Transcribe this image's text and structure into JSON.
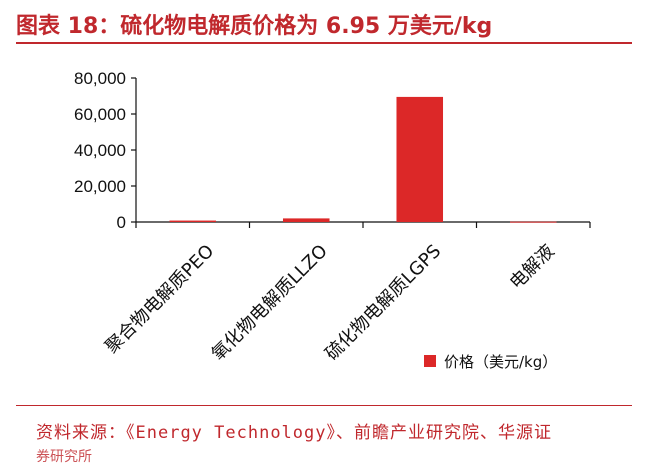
{
  "header": {
    "title": "图表 18：硫化物电解质价格为 6.95 万美元/kg"
  },
  "footer": {
    "source": "资料来源：《Energy Technology》、前瞻产业研究院、华源证",
    "source_cont": "券研究所"
  },
  "colors": {
    "accent": "#c0282d",
    "bar": "#dc2828",
    "axis": "#111111"
  },
  "chart_data": {
    "type": "bar",
    "title": "",
    "xlabel": "",
    "ylabel": "",
    "categories": [
      "聚合物电解质PEO",
      "氧化物电解质LLZO",
      "硫化物电解质LGPS",
      "电解液"
    ],
    "series": [
      {
        "name": "价格（美元/kg）",
        "values": [
          800,
          2000,
          69500,
          200
        ]
      }
    ],
    "ylim": [
      0,
      80000
    ],
    "yticks": [
      0,
      20000,
      40000,
      60000,
      80000
    ],
    "ytick_labels": [
      "0",
      "20,000",
      "40,000",
      "60,000",
      "80,000"
    ],
    "legend_position": "bottom-right",
    "grid": false
  }
}
